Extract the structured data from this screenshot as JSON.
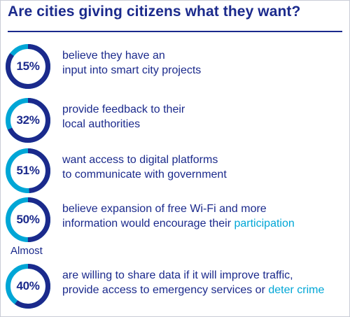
{
  "title": "Are cities giving citizens what they want?",
  "colors": {
    "ring_arc": "#1b2a8c",
    "ring_track": "#00a6d6",
    "text": "#1b2a8c",
    "highlight": "#00a6d6"
  },
  "chart_data": {
    "type": "pie",
    "title": "Are cities giving citizens what they want?",
    "unit": "%",
    "items": [
      {
        "value": 15,
        "label": "15%",
        "qualifier": "",
        "text_lines": [
          {
            "main": "believe they have an",
            "accent": ""
          },
          {
            "main": "input into smart city projects",
            "accent": ""
          }
        ]
      },
      {
        "value": 32,
        "label": "32%",
        "qualifier": "",
        "text_lines": [
          {
            "main": "provide feedback to their",
            "accent": ""
          },
          {
            "main": "local authorities",
            "accent": ""
          }
        ]
      },
      {
        "value": 51,
        "label": "51%",
        "qualifier": "",
        "text_lines": [
          {
            "main": "want access to digital platforms",
            "accent": ""
          },
          {
            "main": "to communicate with government",
            "accent": ""
          }
        ]
      },
      {
        "value": 50,
        "label": "50%",
        "qualifier": "",
        "text_lines": [
          {
            "main": "believe expansion of free Wi-Fi and more",
            "accent": ""
          },
          {
            "main": "information would encourage their ",
            "accent": "participation"
          }
        ]
      },
      {
        "value": 40,
        "label": "40%",
        "qualifier": "Almost",
        "text_lines": [
          {
            "main": "are willing to share data if it will improve traffic,",
            "accent": ""
          },
          {
            "main": "provide access to emergency services or ",
            "accent": "deter crime"
          }
        ]
      }
    ]
  }
}
